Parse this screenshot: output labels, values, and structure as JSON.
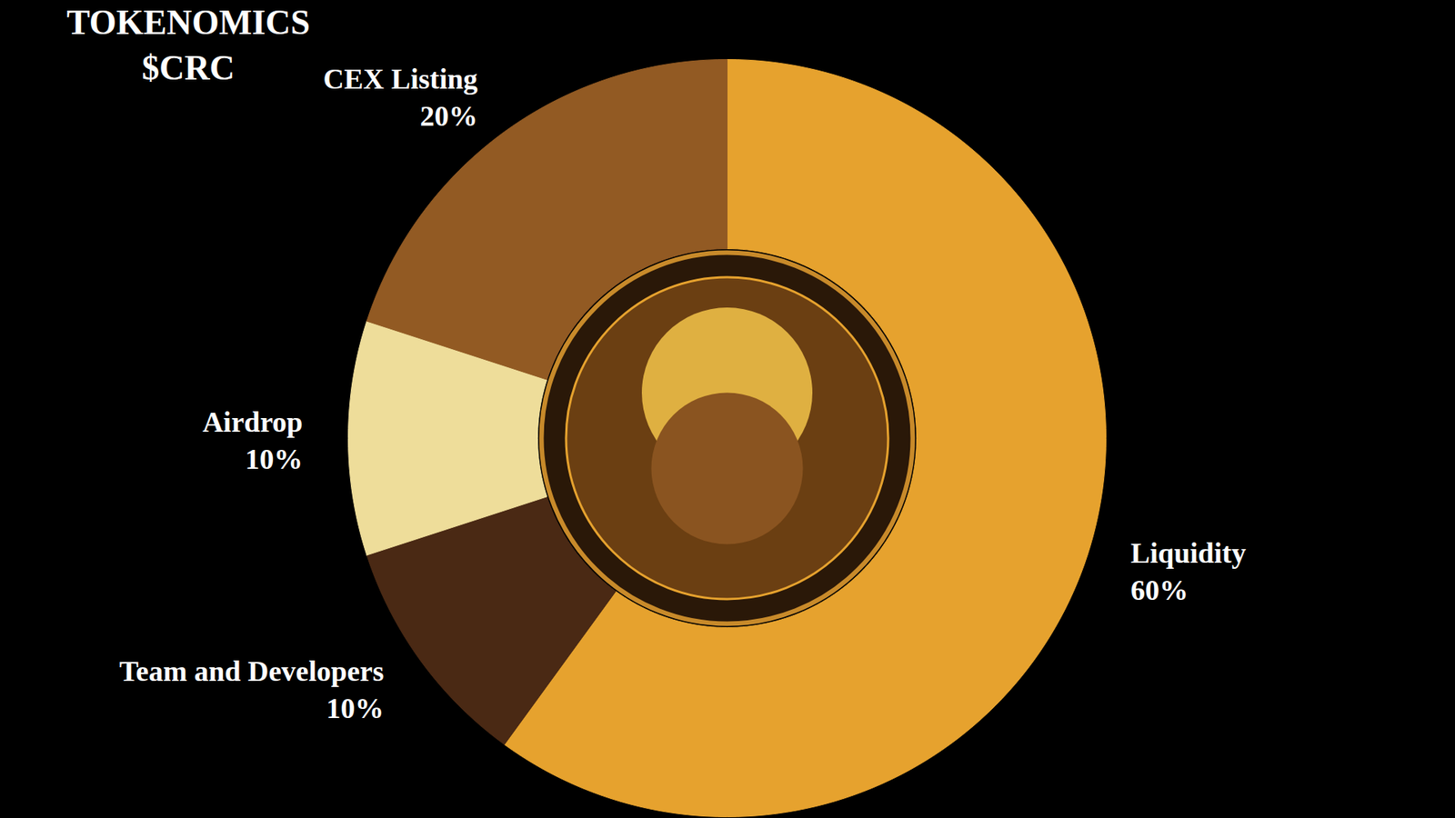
{
  "chart_data": {
    "type": "donut",
    "title": "TOKENOMICS",
    "subtitle": "$CRC",
    "categories": [
      "Liquidity",
      "Team and Developers",
      "Airdrop",
      "CEX Listing"
    ],
    "values": [
      60,
      10,
      10,
      20
    ],
    "value_labels": [
      "60%",
      "10%",
      "10%",
      "20%"
    ],
    "colors": [
      "#e6a22e",
      "#4a2914",
      "#eedd9a",
      "#925a23"
    ],
    "data_labels": true
  }
}
